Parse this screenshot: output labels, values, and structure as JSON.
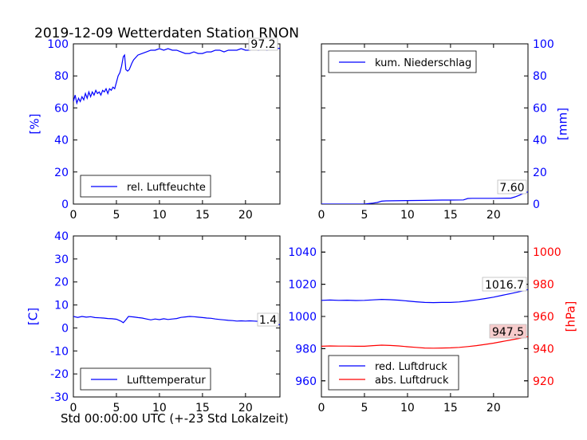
{
  "title": "2019-12-09 Wetterdaten Station RNON",
  "xaxis_caption": "Std 00:00:00 UTC (+-23 Std Lokalzeit)",
  "colors": {
    "blue": "#0000ff",
    "red": "#ff0000",
    "annot_fill": "#f7cccc"
  },
  "chart_data": [
    {
      "type": "line",
      "panel": "top-left",
      "ylabel": "[%]",
      "xlim": [
        0,
        24
      ],
      "ylim": [
        0,
        100
      ],
      "xticks": [
        0,
        5,
        10,
        15,
        20
      ],
      "yticks": [
        0,
        20,
        40,
        60,
        80,
        100
      ],
      "legend": "bottom-left",
      "annotation": "97.2",
      "series": [
        {
          "name": "rel. Luftfeuchte",
          "color": "#0000ff",
          "x": [
            0,
            0.2,
            0.4,
            0.6,
            0.8,
            1,
            1.2,
            1.4,
            1.6,
            1.8,
            2,
            2.2,
            2.4,
            2.6,
            2.8,
            3,
            3.2,
            3.4,
            3.6,
            3.8,
            4,
            4.2,
            4.4,
            4.6,
            4.8,
            5,
            5.2,
            5.4,
            5.6,
            5.8,
            5.95,
            6.1,
            6.3,
            6.5,
            6.8,
            7,
            7.5,
            8,
            8.5,
            9,
            9.5,
            10,
            10.5,
            11,
            11.5,
            12,
            12.5,
            13,
            13.5,
            14,
            14.5,
            15,
            15.5,
            16,
            16.5,
            17,
            17.5,
            18,
            18.5,
            19,
            19.5,
            20,
            20.5,
            21,
            21.5,
            22,
            22.5,
            23,
            23.5,
            24
          ],
          "values": [
            64,
            68,
            63,
            66,
            64,
            67,
            65,
            69,
            66,
            70,
            67,
            70,
            68,
            71,
            69,
            70,
            68,
            71,
            70,
            72,
            69,
            72,
            71,
            73,
            72,
            76,
            80,
            82,
            86,
            92,
            93,
            84,
            83,
            84,
            88,
            90,
            93,
            94,
            95,
            96,
            96,
            97,
            96,
            97,
            96,
            96,
            95,
            94,
            94,
            95,
            94,
            94,
            95,
            95,
            96,
            96,
            95,
            96,
            96,
            96,
            97,
            96,
            96,
            97,
            96,
            97,
            96,
            97,
            97,
            97.2
          ]
        }
      ]
    },
    {
      "type": "line",
      "panel": "top-right",
      "ylabel": "[mm]",
      "xlim": [
        0,
        24
      ],
      "ylim": [
        0,
        100
      ],
      "xticks": [
        0,
        5,
        10,
        15,
        20
      ],
      "yticks": [
        0,
        20,
        40,
        60,
        80,
        100
      ],
      "legend": "top-left",
      "annotation": "7.60",
      "series": [
        {
          "name": "kum. Niederschlag",
          "color": "#0000ff",
          "x": [
            0,
            5,
            5.5,
            6,
            6.5,
            7,
            7.5,
            10,
            12,
            14,
            15,
            16.5,
            17,
            17.5,
            20,
            22,
            22.5,
            23,
            23.5,
            24
          ],
          "values": [
            0,
            0,
            0.3,
            0.6,
            1.0,
            1.8,
            2.0,
            2.2,
            2.3,
            2.5,
            2.5,
            2.6,
            3.5,
            3.6,
            3.6,
            3.7,
            4.5,
            5.5,
            6.8,
            7.6
          ]
        }
      ]
    },
    {
      "type": "line",
      "panel": "bottom-left",
      "ylabel": "[C]",
      "xlim": [
        0,
        24
      ],
      "ylim": [
        -30,
        40
      ],
      "xticks": [
        0,
        5,
        10,
        15,
        20
      ],
      "yticks": [
        -30,
        -20,
        -10,
        0,
        10,
        20,
        30,
        40
      ],
      "legend": "bottom-left",
      "annotation": "1.4",
      "series": [
        {
          "name": "Lufttemperatur",
          "color": "#0000ff",
          "x": [
            0,
            0.5,
            1,
            1.5,
            2,
            2.5,
            3,
            3.5,
            4,
            4.5,
            5,
            5.5,
            5.8,
            6.1,
            6.4,
            7,
            7.5,
            8,
            8.5,
            9,
            9.5,
            10,
            10.5,
            11,
            11.5,
            12,
            12.5,
            13,
            13.5,
            14,
            14.5,
            15,
            15.5,
            16,
            16.5,
            17,
            17.5,
            18,
            18.5,
            19,
            19.5,
            20,
            20.5,
            21,
            21.5,
            22,
            22.5,
            23,
            23.5,
            24
          ],
          "values": [
            5.0,
            4.6,
            5.0,
            4.7,
            4.9,
            4.5,
            4.4,
            4.3,
            4.1,
            4.0,
            3.8,
            3.0,
            2.3,
            3.5,
            5.0,
            4.8,
            4.5,
            4.3,
            3.9,
            3.5,
            3.9,
            3.6,
            4.0,
            3.7,
            3.9,
            4.1,
            4.6,
            4.8,
            5.0,
            4.9,
            4.7,
            4.5,
            4.3,
            4.2,
            3.9,
            3.7,
            3.5,
            3.3,
            3.2,
            3.0,
            3.1,
            3.0,
            3.1,
            3.0,
            2.9,
            2.8,
            2.4,
            1.9,
            1.6,
            1.4
          ]
        }
      ]
    },
    {
      "type": "line",
      "panel": "bottom-right",
      "ylabel": "",
      "ylabel_right": "[hPa]",
      "xlim": [
        0,
        24
      ],
      "ylim": [
        950,
        1050
      ],
      "ylim_right": [
        910,
        1010
      ],
      "xticks": [
        0,
        5,
        10,
        15,
        20
      ],
      "yticks": [
        960,
        980,
        1000,
        1020,
        1040
      ],
      "yticks_right": [
        920,
        940,
        960,
        980,
        1000
      ],
      "legend": "bottom-left",
      "annotations": [
        "1016.7",
        "947.5"
      ],
      "series": [
        {
          "name": "red. Luftdruck",
          "color": "#0000ff",
          "axis": "left",
          "x": [
            0,
            1,
            2,
            3,
            4,
            5,
            6,
            7,
            8,
            9,
            10,
            11,
            12,
            13,
            14,
            15,
            16,
            17,
            18,
            19,
            20,
            21,
            22,
            23,
            24
          ],
          "values": [
            1010.0,
            1010.2,
            1010.0,
            1010.1,
            1009.9,
            1010.0,
            1010.3,
            1010.6,
            1010.4,
            1010.1,
            1009.6,
            1009.1,
            1008.7,
            1008.6,
            1008.7,
            1008.7,
            1009.0,
            1009.6,
            1010.3,
            1011.1,
            1012.0,
            1013.1,
            1014.2,
            1015.4,
            1016.7
          ]
        },
        {
          "name": "abs. Luftdruck",
          "color": "#ff0000",
          "axis": "right",
          "x": [
            0,
            1,
            2,
            3,
            4,
            5,
            6,
            7,
            8,
            9,
            10,
            11,
            12,
            13,
            14,
            15,
            16,
            17,
            18,
            19,
            20,
            21,
            22,
            23,
            24
          ],
          "values": [
            941.5,
            941.7,
            941.6,
            941.6,
            941.5,
            941.5,
            941.9,
            942.2,
            942.0,
            941.7,
            941.2,
            940.8,
            940.4,
            940.3,
            940.4,
            940.5,
            940.8,
            941.3,
            941.9,
            942.6,
            943.4,
            944.4,
            945.4,
            946.4,
            947.5
          ]
        }
      ]
    }
  ]
}
